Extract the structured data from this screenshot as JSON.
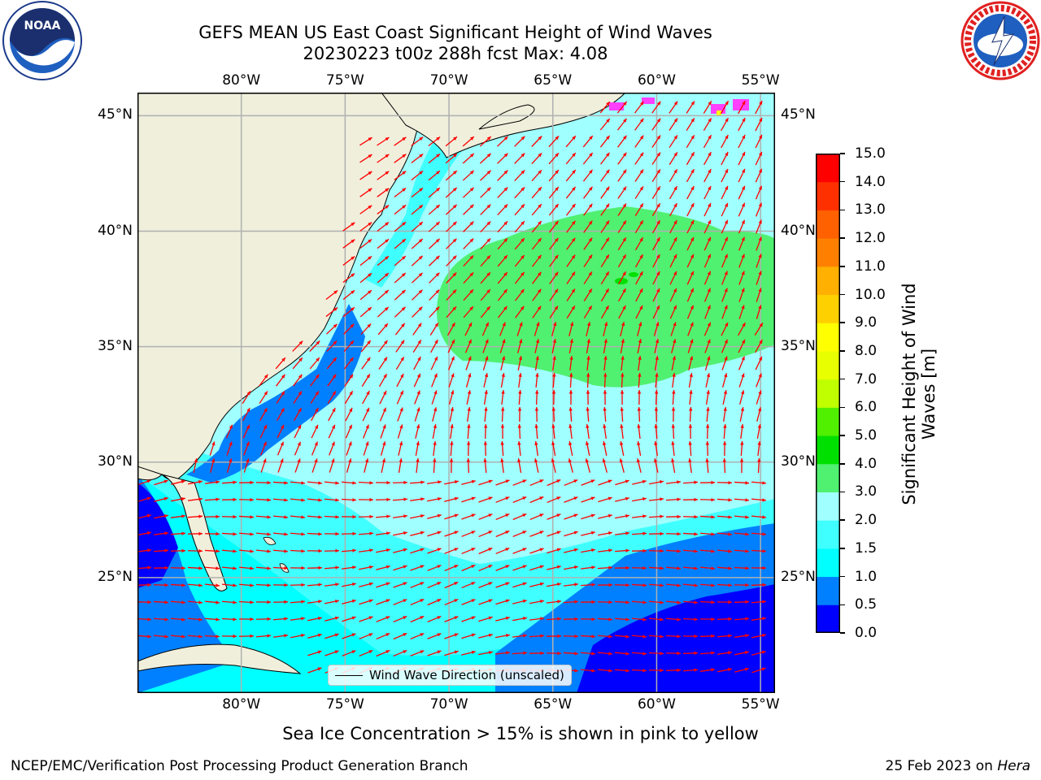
{
  "title": {
    "line1": "GEFS MEAN US East Coast Significant Height of Wind Waves",
    "line2": "20230223 t00z 288h fcst   Max: 4.08"
  },
  "logos": {
    "left": {
      "icon": "noaa-logo-icon",
      "text": "NOAA"
    },
    "right": {
      "icon": "national-weather-service-logo-icon",
      "text": "NATIONAL WEATHER SERVICE"
    }
  },
  "map": {
    "lon_ticks": [
      "80°W",
      "75°W",
      "70°W",
      "65°W",
      "60°W",
      "55°W"
    ],
    "lat_ticks": [
      "45°N",
      "40°N",
      "35°N",
      "30°N",
      "25°N"
    ],
    "extent": {
      "lon_min": -85,
      "lon_max": -54.3,
      "lat_min": 20,
      "lat_max": 46
    },
    "land_color": "#efefdc",
    "legend_label": "Wind Wave Direction (unscaled)",
    "arrow_color": "#ff0000"
  },
  "colorbar": {
    "label": "Significant Height of Wind Waves [m]",
    "tick_labels": [
      "0.0",
      "0.5",
      "1.0",
      "1.5",
      "2.0",
      "3.0",
      "4.0",
      "5.0",
      "6.0",
      "7.0",
      "8.0",
      "9.0",
      "10.0",
      "11.0",
      "12.0",
      "13.0",
      "14.0",
      "15.0"
    ],
    "colors": [
      "#0000ff",
      "#0080ff",
      "#00ffff",
      "#40ffff",
      "#a0ffff",
      "#50f070",
      "#00e000",
      "#50f000",
      "#c0ff00",
      "#e8ff00",
      "#ffff00",
      "#ffd000",
      "#ffb000",
      "#ff8000",
      "#ff6000",
      "#ff3000",
      "#ff0000"
    ]
  },
  "caption": "Sea Ice Concentration > 15% is shown in pink to yellow",
  "footer": {
    "left": "NCEP/EMC/Verification Post Processing Product Generation Branch",
    "right_date": "25 Feb 2023 on ",
    "right_host": "Hera"
  }
}
